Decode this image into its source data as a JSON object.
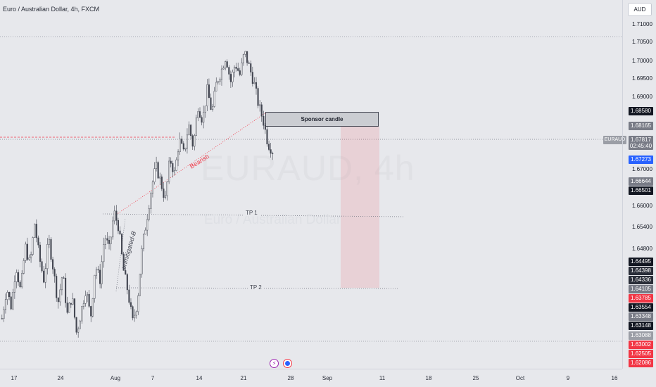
{
  "header": {
    "symbol_title": "Euro / Australian Dollar, 4h, FXCM",
    "currency_button": "AUD"
  },
  "watermark": {
    "symbol": "EURAUD, 4h",
    "description": "Euro / Australian Dollar"
  },
  "price_axis": {
    "ticks": [
      {
        "label": "1.71000",
        "y": 1.71
      },
      {
        "label": "1.70500",
        "y": 1.705
      },
      {
        "label": "1.70000",
        "y": 1.7
      },
      {
        "label": "1.69500",
        "y": 1.695
      },
      {
        "label": "1.69000",
        "y": 1.69
      },
      {
        "label": "1.67000",
        "y": 1.67
      },
      {
        "label": "1.66000",
        "y": 1.66
      },
      {
        "label": "1.65400",
        "y": 1.654
      },
      {
        "label": "1.64800",
        "y": 1.648
      }
    ],
    "labels": [
      {
        "text": "1.68580",
        "color": "#131722"
      },
      {
        "text": "1.68165",
        "color": "#787b86"
      },
      {
        "text": "1.67817",
        "sub": "02:45:40",
        "color": "#787b86"
      },
      {
        "text": "1.67273",
        "color": "#2962ff"
      },
      {
        "text": "1.66644",
        "color": "#787b86"
      },
      {
        "text": "1.66501",
        "color": "#131722"
      },
      {
        "text": "1.64495",
        "color": "#131722"
      },
      {
        "text": "1.64398",
        "color": "#2a2e39"
      },
      {
        "text": "1.64336",
        "color": "#2a2e39"
      },
      {
        "text": "1.64105",
        "color": "#787b86"
      },
      {
        "text": "1.63785",
        "color": "#f23645"
      },
      {
        "text": "1.63554",
        "color": "#131722"
      },
      {
        "text": "1.63348",
        "color": "#787b86"
      },
      {
        "text": "1.63148",
        "color": "#131722"
      },
      {
        "text": "1.63088",
        "color": "#9b9ea6"
      },
      {
        "text": "1.63002",
        "color": "#f23645"
      },
      {
        "text": "1.62505",
        "color": "#f23645"
      },
      {
        "text": "1.62086",
        "color": "#f23645"
      }
    ],
    "symbol_tag": "EURAUD"
  },
  "time_axis": {
    "ticks": [
      "17",
      "24",
      "Aug",
      "7",
      "14",
      "21",
      "28",
      "Sep",
      "11",
      "18",
      "25",
      "Oct",
      "9",
      "16"
    ]
  },
  "drawings": {
    "sponsor_candle": "Sponsor candle",
    "tp1": "TP 1",
    "tp2": "TP 2",
    "bearish_label": "Bearish",
    "unmitigated_label": "unmitigated-B"
  },
  "chart_data": {
    "type": "candlestick",
    "symbol": "EURAUD",
    "timeframe": "4h",
    "ylim": [
      1.6208,
      1.713
    ],
    "last_price": 1.67817,
    "levels": {
      "sponsor_candle_top": 1.6858,
      "sponsor_candle_bottom": 1.6817,
      "tp1": 1.6578,
      "tp2": 1.6419,
      "range_high_line": 1.7077,
      "range_low_line": 1.6281
    },
    "path": [
      1.634,
      1.642,
      1.637,
      1.648,
      1.641,
      1.653,
      1.648,
      1.659,
      1.65,
      1.644,
      1.655,
      1.647,
      1.638,
      1.646,
      1.635,
      1.64,
      1.63,
      1.636,
      1.642,
      1.634,
      1.648,
      1.644,
      1.656,
      1.652,
      1.662,
      1.658,
      1.647,
      1.641,
      1.633,
      1.638,
      1.652,
      1.66,
      1.668,
      1.674,
      1.67,
      1.665,
      1.676,
      1.672,
      1.681,
      1.677,
      1.685,
      1.679,
      1.69,
      1.686,
      1.694,
      1.688,
      1.696,
      1.699,
      1.703,
      1.696,
      1.701,
      1.698,
      1.704,
      1.7,
      1.696,
      1.69,
      1.686,
      1.68,
      1.6781
    ]
  }
}
